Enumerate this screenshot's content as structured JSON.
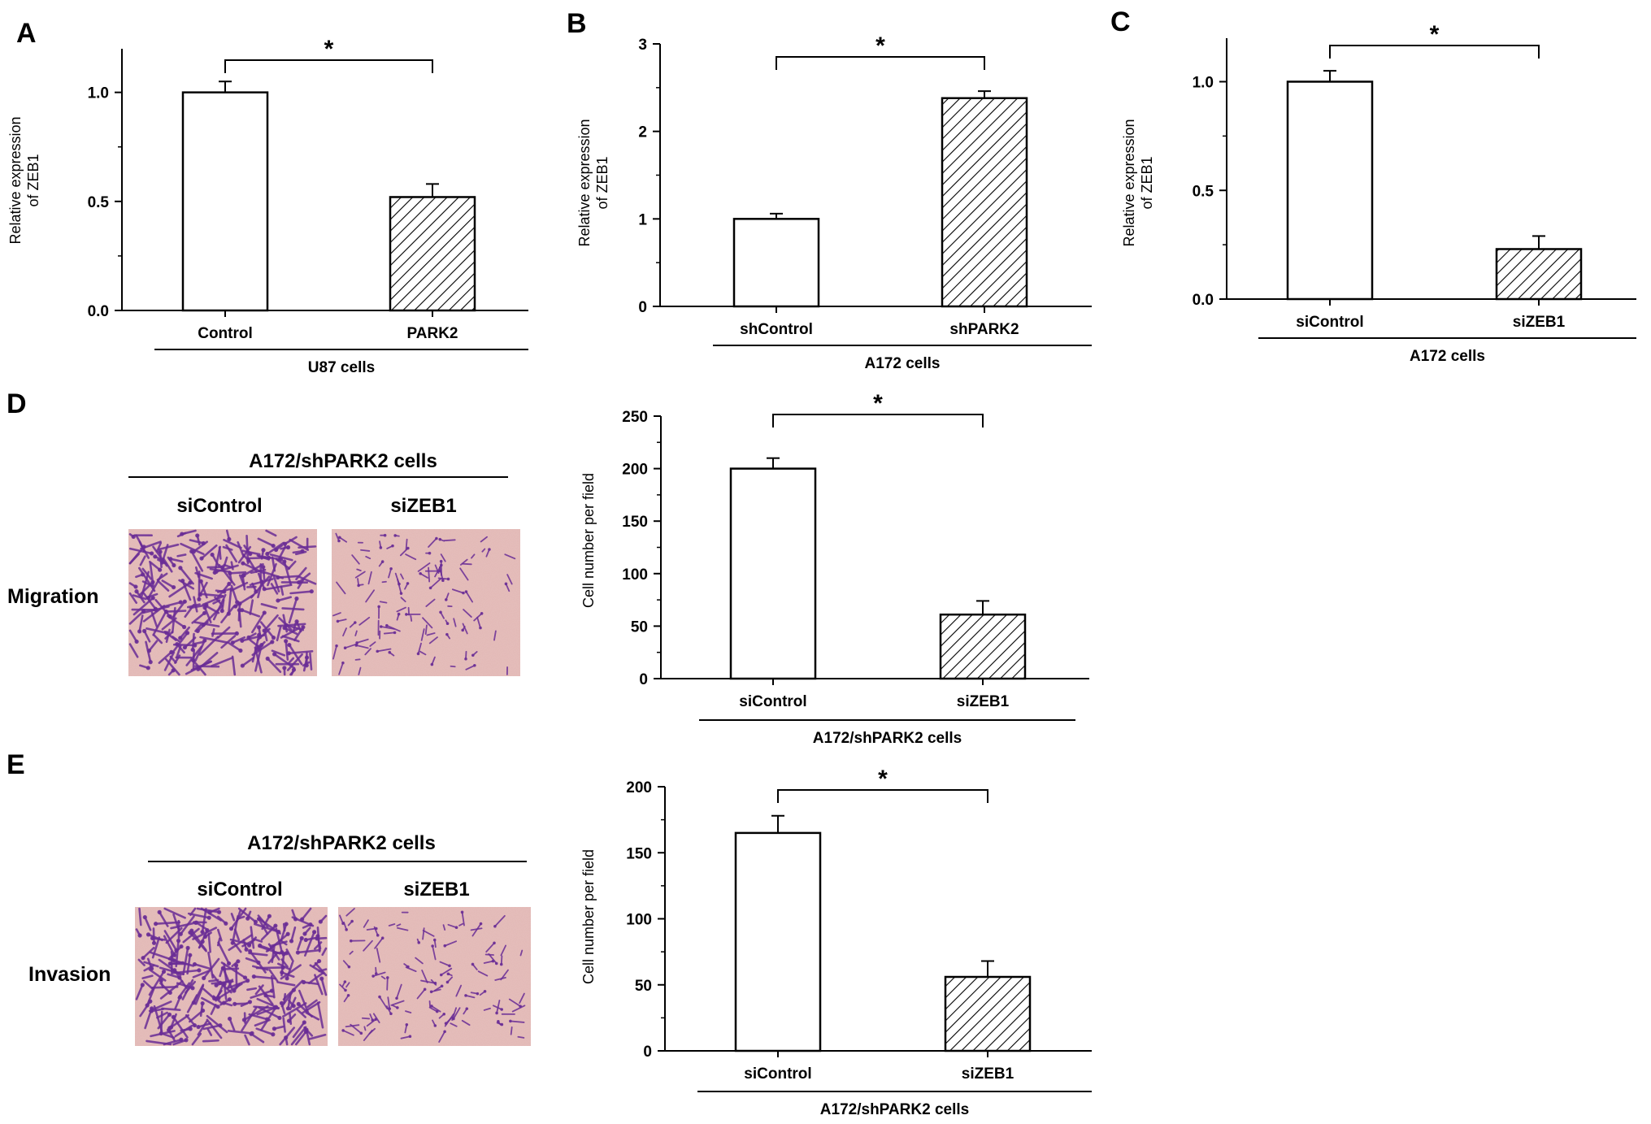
{
  "colors": {
    "ink": "#000000",
    "bar_open": "#ffffff",
    "micrograph_bg": "#e2b7b4",
    "stain": "#6a2d96"
  },
  "chart_data": [
    {
      "panel": "A",
      "type": "bar",
      "categories": [
        "Control",
        "PARK2"
      ],
      "values": [
        1.0,
        0.52
      ],
      "errors": [
        0.05,
        0.06
      ],
      "bar_fill": [
        "open",
        "hatched"
      ],
      "ylabel": "Relative expression\nof ZEB1",
      "ylim": [
        0,
        1.2
      ],
      "yticks": [
        0.0,
        0.5,
        1.0
      ],
      "ytick_labels": [
        "0.0",
        "0.5",
        "1.0"
      ],
      "group_label": "U87 cells",
      "significance": "*"
    },
    {
      "panel": "B",
      "type": "bar",
      "categories": [
        "shControl",
        "shPARK2"
      ],
      "values": [
        1.0,
        2.38
      ],
      "errors": [
        0.06,
        0.08
      ],
      "bar_fill": [
        "open",
        "hatched"
      ],
      "ylabel": "Relative expression\nof ZEB1",
      "ylim": [
        0,
        3
      ],
      "yticks": [
        0,
        1,
        2,
        3
      ],
      "ytick_labels": [
        "0",
        "1",
        "2",
        "3"
      ],
      "group_label": "A172 cells",
      "significance": "*"
    },
    {
      "panel": "C",
      "type": "bar",
      "categories": [
        "siControl",
        "siZEB1"
      ],
      "values": [
        1.0,
        0.23
      ],
      "errors": [
        0.05,
        0.06
      ],
      "bar_fill": [
        "open",
        "hatched"
      ],
      "ylabel": "Relative expression\nof ZEB1",
      "ylim": [
        0,
        1.2
      ],
      "yticks": [
        0.0,
        0.5,
        1.0
      ],
      "ytick_labels": [
        "0.0",
        "0.5",
        "1.0"
      ],
      "group_label": "A172 cells",
      "significance": "*"
    },
    {
      "panel": "D",
      "type": "bar",
      "categories": [
        "siControl",
        "siZEB1"
      ],
      "values": [
        200,
        61
      ],
      "errors": [
        10,
        13
      ],
      "bar_fill": [
        "open",
        "hatched"
      ],
      "ylabel": "Cell number per field",
      "ylim": [
        0,
        250
      ],
      "yticks": [
        0,
        50,
        100,
        150,
        200,
        250
      ],
      "ytick_labels": [
        "0",
        "50",
        "100",
        "150",
        "200",
        "250"
      ],
      "group_label": "A172/shPARK2 cells",
      "significance": "*"
    },
    {
      "panel": "E",
      "type": "bar",
      "categories": [
        "siControl",
        "siZEB1"
      ],
      "values": [
        165,
        56
      ],
      "errors": [
        13,
        12
      ],
      "bar_fill": [
        "open",
        "hatched"
      ],
      "ylabel": "Cell number per field",
      "ylim": [
        0,
        200
      ],
      "yticks": [
        0,
        50,
        100,
        150,
        200
      ],
      "ytick_labels": [
        "0",
        "50",
        "100",
        "150",
        "200"
      ],
      "group_label": "A172/shPARK2 cells",
      "significance": "*"
    }
  ],
  "micrographs": [
    {
      "panel": "D",
      "row_label": "Migration",
      "header": "A172/shPARK2 cells",
      "columns": [
        "siControl",
        "siZEB1"
      ],
      "density": [
        "high",
        "low"
      ]
    },
    {
      "panel": "E",
      "row_label": "Invasion",
      "header": "A172/shPARK2 cells",
      "columns": [
        "siControl",
        "siZEB1"
      ],
      "density": [
        "high",
        "low"
      ]
    }
  ]
}
